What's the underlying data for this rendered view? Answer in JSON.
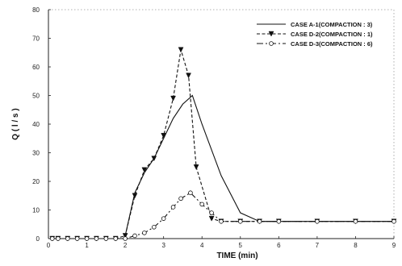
{
  "chart_data": {
    "type": "line",
    "title": "",
    "xlabel": "TIME (min)",
    "ylabel": "Q ( l / s )",
    "xlim": [
      0,
      9
    ],
    "ylim": [
      0,
      80
    ],
    "xticks": [
      0,
      1,
      2,
      3,
      4,
      5,
      6,
      7,
      8,
      9
    ],
    "yticks": [
      0,
      10,
      20,
      30,
      40,
      50,
      60,
      70,
      80
    ],
    "grid": false,
    "legend_position": "top-right",
    "series": [
      {
        "name": "CASE A-1(COMPACTION : 3)",
        "style": "solid",
        "marker": "none",
        "color": "#111111",
        "x": [
          0.1,
          0.5,
          1.0,
          1.5,
          1.95,
          2.0,
          2.25,
          2.5,
          2.75,
          3.0,
          3.25,
          3.5,
          3.75,
          4.0,
          4.5,
          5.0,
          5.5,
          6.0,
          7.0,
          8.0,
          9.0
        ],
        "y": [
          0,
          0,
          0,
          0,
          0,
          1,
          16,
          23,
          28,
          35,
          42,
          47,
          50,
          40,
          22,
          9,
          6,
          6,
          6,
          6,
          6
        ]
      },
      {
        "name": "CASE D-2(COMPACTION : 1)",
        "style": "dashed",
        "marker": "triangle-down",
        "color": "#111111",
        "x": [
          0.1,
          0.25,
          0.5,
          0.75,
          1.0,
          1.25,
          1.5,
          1.75,
          2.0,
          2.25,
          2.5,
          2.75,
          3.0,
          3.25,
          3.45,
          3.65,
          3.85,
          4.25,
          4.5,
          5.0,
          5.5,
          6.0,
          7.0,
          8.0,
          9.0
        ],
        "y": [
          0,
          0,
          0,
          0,
          0,
          0,
          0,
          0,
          1,
          15,
          24,
          28,
          36,
          49,
          66,
          57,
          25,
          7,
          6,
          6,
          6,
          6,
          6,
          6,
          6
        ]
      },
      {
        "name": "CASE D-3(COMPACTION : 6)",
        "style": "dashed-long",
        "marker": "circle-open",
        "color": "#111111",
        "x": [
          0.1,
          0.25,
          0.5,
          0.75,
          1.0,
          1.25,
          1.5,
          1.75,
          2.0,
          2.25,
          2.5,
          2.75,
          3.0,
          3.25,
          3.45,
          3.7,
          4.0,
          4.25,
          4.5,
          5.0,
          5.5,
          6.0,
          7.0,
          8.0,
          9.0
        ],
        "y": [
          0,
          0,
          0,
          0,
          0,
          0,
          0,
          0,
          0,
          1,
          2,
          4,
          7,
          11,
          14,
          16,
          12,
          9,
          6,
          6,
          6,
          6,
          6,
          6,
          6
        ]
      }
    ]
  }
}
